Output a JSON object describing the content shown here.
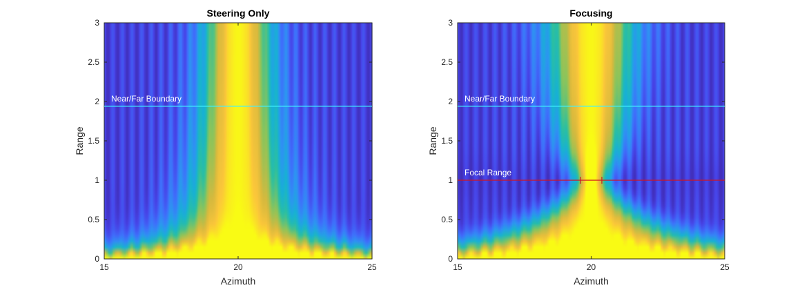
{
  "colors": {
    "colormap": [
      "#3e26a8",
      "#4743e7",
      "#3f6efb",
      "#2d94f1",
      "#17b1d3",
      "#2bbfa0",
      "#8bc45b",
      "#d7b93d",
      "#fbc63a",
      "#f9fb14"
    ],
    "boundary_line": "#3ff2ff",
    "focal_line": "#d4141f",
    "axis_box": "#262626"
  },
  "chart_data": [
    {
      "type": "heatmap",
      "title": "Steering Only",
      "xlabel": "Azimuth",
      "ylabel": "Range",
      "xlim": [
        15,
        25
      ],
      "ylim": [
        0,
        3
      ],
      "x_ticks": [
        "15",
        "20",
        "25"
      ],
      "y_ticks": [
        "0",
        "0.5",
        "1",
        "1.5",
        "2",
        "2.5",
        "3"
      ],
      "beam_center_azimuth": 20,
      "focused": false,
      "annotations": [
        {
          "text": "Near/Far Boundary",
          "y": 1.94,
          "color": "#3ff2ff"
        }
      ]
    },
    {
      "type": "heatmap",
      "title": "Focusing",
      "xlabel": "Azimuth",
      "ylabel": "Range",
      "xlim": [
        15,
        25
      ],
      "ylim": [
        0,
        3
      ],
      "x_ticks": [
        "15",
        "20",
        "25"
      ],
      "y_ticks": [
        "0",
        "0.5",
        "1",
        "1.5",
        "2",
        "2.5",
        "3"
      ],
      "beam_center_azimuth": 20,
      "focused": true,
      "focal_range": 1.0,
      "annotations": [
        {
          "text": "Near/Far Boundary",
          "y": 1.94,
          "color": "#3ff2ff"
        },
        {
          "text": "Focal Range",
          "y": 1.0,
          "color": "#d4141f"
        }
      ]
    }
  ]
}
